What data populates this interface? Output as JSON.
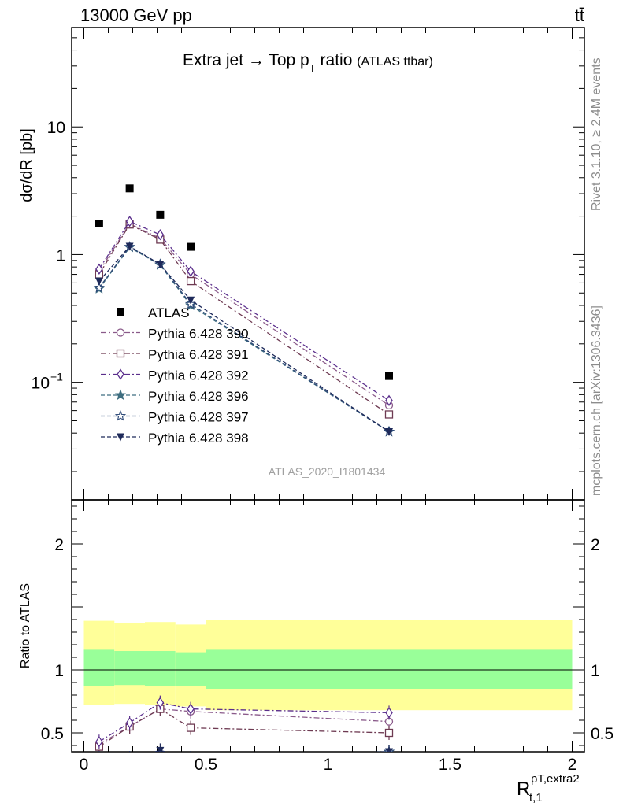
{
  "header": {
    "left": "13000 GeV pp",
    "right": "tt̄"
  },
  "title": {
    "main": "Extra jet",
    "arrow": "→",
    "top": "Top p",
    "top_sub": "T",
    "ratio_word": "ratio",
    "paren": "(ATLAS ttbar)"
  },
  "watermark": "ATLAS_2020_I1801434",
  "side_text_top": "Rivet 3.1.10, ≥ 2.4M events",
  "side_text_bottom": "mcplots.cern.ch [arXiv:1306.3436]",
  "ylabel_main": "dσ/dR [pb]",
  "ylabel_ratio": "Ratio to ATLAS",
  "xlabel": {
    "main": "R",
    "sup": "pT,extra2",
    "sub": "t,1"
  },
  "colors": {
    "data": "#000000",
    "band_inner": "#99ff99",
    "band_outer": "#ffff99"
  },
  "chart_data": [
    {
      "type": "scatter",
      "panel": "main",
      "yscale": "log",
      "xlim": [
        -0.05,
        2.05
      ],
      "ylim": [
        0.012,
        60
      ],
      "x": [
        0.0625,
        0.1875,
        0.3125,
        0.4375,
        1.25
      ],
      "y_ticks": [
        {
          "value": 0.1,
          "label": "10",
          "exp": "−1"
        },
        {
          "value": 1,
          "label": "1",
          "exp": ""
        },
        {
          "value": 10,
          "label": "10",
          "exp": ""
        }
      ],
      "series": [
        {
          "name": "ATLAS",
          "marker": "square-filled",
          "line": "none",
          "color": "#000000",
          "values": [
            1.75,
            3.3,
            2.05,
            1.15,
            0.112
          ]
        },
        {
          "name": "Pythia 6.428 390",
          "marker": "circle-open",
          "line": "dashdot",
          "color": "#8a5a8a",
          "values": [
            0.74,
            1.74,
            1.34,
            0.7,
            0.066
          ]
        },
        {
          "name": "Pythia 6.428 391",
          "marker": "square-open",
          "line": "dashdot",
          "color": "#6e3a52",
          "values": [
            0.7,
            1.72,
            1.31,
            0.62,
            0.056
          ]
        },
        {
          "name": "Pythia 6.428 392",
          "marker": "diamond-open",
          "line": "dashdot",
          "color": "#5a2e8c",
          "values": [
            0.77,
            1.82,
            1.43,
            0.74,
            0.072
          ]
        },
        {
          "name": "Pythia 6.428 396",
          "marker": "star-filled",
          "line": "dashed",
          "color": "#3f6e80",
          "values": [
            0.54,
            1.14,
            0.83,
            0.4,
            0.041
          ]
        },
        {
          "name": "Pythia 6.428 397",
          "marker": "star-open",
          "line": "dashed",
          "color": "#2e4a78",
          "values": [
            0.55,
            1.15,
            0.84,
            0.41,
            0.041
          ]
        },
        {
          "name": "Pythia 6.428 398",
          "marker": "triangle-down-filled",
          "line": "dashed",
          "color": "#1e2a5a",
          "values": [
            0.62,
            1.16,
            0.84,
            0.44,
            0.041
          ]
        }
      ]
    },
    {
      "type": "scatter",
      "panel": "ratio",
      "xlim": [
        -0.05,
        2.05
      ],
      "ylim": [
        0.35,
        2.35
      ],
      "y_ticks": [
        {
          "value": 0.5,
          "label": "0.5"
        },
        {
          "value": 1,
          "label": "1"
        },
        {
          "value": 2,
          "label": "2"
        }
      ],
      "x_ticks": [
        {
          "value": 0,
          "label": "0"
        },
        {
          "value": 0.5,
          "label": "0.5"
        },
        {
          "value": 1,
          "label": "1"
        },
        {
          "value": 1.5,
          "label": "1.5"
        },
        {
          "value": 2,
          "label": "2"
        }
      ],
      "bands": {
        "edges": [
          0,
          0.125,
          0.25,
          0.375,
          0.5,
          2.0
        ],
        "outer_lo": [
          0.72,
          0.73,
          0.72,
          0.71,
          0.68
        ],
        "outer_hi": [
          1.39,
          1.37,
          1.38,
          1.36,
          1.4
        ],
        "inner_lo": [
          0.87,
          0.88,
          0.87,
          0.87,
          0.85
        ],
        "inner_hi": [
          1.16,
          1.15,
          1.15,
          1.14,
          1.16
        ]
      },
      "x": [
        0.0625,
        0.1875,
        0.3125,
        0.4375,
        1.25
      ],
      "series": [
        {
          "name": "Pythia 6.428 390",
          "values": [
            0.41,
            0.55,
            0.69,
            0.67,
            0.59
          ]
        },
        {
          "name": "Pythia 6.428 391",
          "values": [
            0.39,
            0.55,
            0.69,
            0.54,
            0.5
          ]
        },
        {
          "name": "Pythia 6.428 392",
          "values": [
            0.43,
            0.58,
            0.74,
            0.69,
            0.66
          ]
        },
        {
          "name": "Pythia 6.428 396",
          "values": [
            0.28,
            0.3,
            0.33,
            0.3,
            0.35
          ]
        },
        {
          "name": "Pythia 6.428 397",
          "values": [
            0.28,
            0.3,
            0.33,
            0.3,
            0.35
          ]
        },
        {
          "name": "Pythia 6.428 398",
          "values": [
            0.3,
            0.3,
            0.36,
            0.3,
            0.35
          ]
        }
      ]
    }
  ]
}
